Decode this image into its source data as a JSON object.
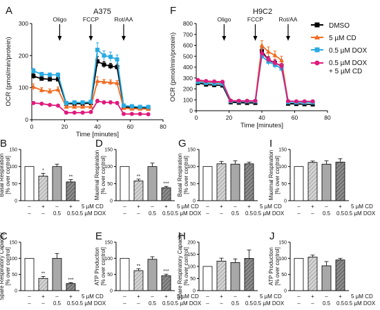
{
  "legend": {
    "items": [
      {
        "label": "DMSO",
        "color": "#000000"
      },
      {
        "label": "5 µM CD",
        "color": "#f26b21"
      },
      {
        "label": "0.5 µM DOX",
        "color": "#29abe2"
      },
      {
        "label": "0.5 µM DOX",
        "label2": "+ 5 µM CD",
        "color": "#e0197d"
      }
    ]
  },
  "bar_panels_common": {
    "cd_label": "5 µM CD",
    "dox_label": "0.5 µM DOX",
    "cd_signs": [
      "–",
      "+",
      "–",
      "+"
    ],
    "dox_signs": [
      "–",
      "–",
      "0.5",
      "0.5"
    ],
    "ylabel2": "[% over control]"
  },
  "chart_data": [
    {
      "id": "A",
      "type": "line",
      "panel_letter": "A",
      "title": "A375",
      "xlabel": "Time [minutes]",
      "ylabel": "OCR (pmol/min/protein)",
      "xlim": [
        0,
        80
      ],
      "ylim": [
        0,
        300
      ],
      "xticks": [
        0,
        20,
        40,
        60,
        80
      ],
      "yticks": [
        0,
        100,
        200,
        300
      ],
      "annotations": [
        {
          "label": "Oligo",
          "x": 17
        },
        {
          "label": "FCCP",
          "x": 36
        },
        {
          "label": "Rot/AA",
          "x": 56
        }
      ],
      "x": [
        1,
        6,
        11,
        16,
        21,
        26,
        31,
        36,
        40,
        44,
        48,
        52,
        56,
        61,
        66,
        71
      ],
      "series": [
        {
          "name": "DMSO",
          "color": "#000000",
          "marker": "square",
          "values": [
            136,
            128,
            126,
            126,
            50,
            50,
            50,
            52,
            182,
            172,
            167,
            164,
            40,
            38,
            37,
            37
          ],
          "errors": [
            8,
            6,
            6,
            6,
            3,
            3,
            3,
            3,
            15,
            10,
            9,
            9,
            3,
            3,
            3,
            3
          ]
        },
        {
          "name": "5 µM CD",
          "color": "#f26b21",
          "marker": "triangle",
          "values": [
            102,
            92,
            88,
            94,
            40,
            40,
            40,
            40,
            120,
            118,
            116,
            114,
            36,
            34,
            34,
            33
          ],
          "errors": [
            10,
            8,
            8,
            8,
            3,
            3,
            3,
            3,
            14,
            8,
            8,
            8,
            3,
            3,
            3,
            3
          ]
        },
        {
          "name": "0.5 µM DOX",
          "color": "#29abe2",
          "marker": "square",
          "values": [
            152,
            142,
            140,
            140,
            52,
            54,
            54,
            56,
            218,
            200,
            196,
            188,
            44,
            42,
            40,
            40
          ],
          "errors": [
            8,
            6,
            6,
            6,
            3,
            3,
            3,
            3,
            22,
            15,
            15,
            14,
            3,
            3,
            3,
            3
          ]
        },
        {
          "name": "0.5 µM DOX + 5 µM CD",
          "color": "#e0197d",
          "marker": "circle",
          "values": [
            52,
            50,
            46,
            44,
            22,
            22,
            22,
            24,
            58,
            54,
            54,
            52,
            18,
            18,
            18,
            17
          ],
          "errors": [
            4,
            3,
            3,
            3,
            2,
            2,
            2,
            2,
            6,
            5,
            5,
            5,
            2,
            2,
            2,
            2
          ]
        }
      ]
    },
    {
      "id": "F",
      "type": "line",
      "panel_letter": "F",
      "title": "H9C2",
      "xlabel": "Time [minutes]",
      "ylabel": "OCR (pmol/min/protein)",
      "xlim": [
        0,
        80
      ],
      "ylim": [
        0,
        800
      ],
      "xticks": [
        0,
        20,
        40,
        60,
        80
      ],
      "yticks": [
        0,
        100,
        200,
        300,
        400,
        500,
        600,
        700,
        800
      ],
      "annotations": [
        {
          "label": "Oligo",
          "x": 17
        },
        {
          "label": "FCCP",
          "x": 36
        },
        {
          "label": "Rot/AA",
          "x": 56
        }
      ],
      "x": [
        1,
        6,
        11,
        16,
        21,
        26,
        31,
        36,
        40,
        44,
        48,
        52,
        56,
        61,
        66,
        71
      ],
      "series": [
        {
          "name": "DMSO",
          "color": "#000000",
          "marker": "square",
          "values": [
            255,
            240,
            235,
            232,
            78,
            74,
            72,
            72,
            548,
            465,
            438,
            410,
            65,
            62,
            60,
            58
          ],
          "errors": [
            10,
            10,
            10,
            10,
            8,
            8,
            8,
            8,
            28,
            28,
            25,
            25,
            8,
            8,
            8,
            8
          ]
        },
        {
          "name": "5 µM CD",
          "color": "#f26b21",
          "marker": "triangle",
          "values": [
            270,
            262,
            258,
            258,
            92,
            90,
            90,
            90,
            598,
            540,
            508,
            462,
            82,
            80,
            80,
            80
          ],
          "errors": [
            12,
            12,
            12,
            12,
            8,
            8,
            8,
            8,
            45,
            45,
            40,
            38,
            8,
            8,
            8,
            8
          ]
        },
        {
          "name": "0.5 µM DOX",
          "color": "#29abe2",
          "marker": "square",
          "values": [
            265,
            255,
            250,
            248,
            88,
            86,
            86,
            86,
            500,
            450,
            420,
            388,
            78,
            76,
            76,
            76
          ],
          "errors": [
            12,
            12,
            12,
            12,
            8,
            8,
            8,
            8,
            35,
            30,
            30,
            28,
            8,
            8,
            8,
            8
          ]
        },
        {
          "name": "0.5 µM DOX + 5 µM CD",
          "color": "#e0197d",
          "marker": "circle",
          "values": [
            282,
            272,
            268,
            265,
            92,
            90,
            90,
            90,
            528,
            470,
            440,
            410,
            88,
            86,
            86,
            86
          ],
          "errors": [
            12,
            12,
            12,
            12,
            8,
            8,
            8,
            8,
            30,
            28,
            28,
            25,
            8,
            8,
            8,
            8
          ]
        }
      ]
    },
    {
      "id": "B",
      "type": "bar",
      "panel_letter": "B",
      "ylabel": "Basal Respiration",
      "ylim": [
        0,
        150
      ],
      "yticks": [
        0,
        50,
        100,
        150
      ],
      "values": [
        100,
        72,
        100,
        55
      ],
      "errors": [
        0,
        8,
        7,
        7
      ],
      "significance": [
        "",
        "*",
        "",
        "**"
      ]
    },
    {
      "id": "D",
      "type": "bar",
      "panel_letter": "D",
      "ylabel": "Maximal Respiration",
      "ylim": [
        0,
        150
      ],
      "yticks": [
        0,
        50,
        100,
        150
      ],
      "values": [
        100,
        58,
        100,
        38
      ],
      "errors": [
        0,
        5,
        10,
        4
      ],
      "significance": [
        "",
        "**",
        "",
        "***"
      ]
    },
    {
      "id": "G",
      "type": "bar",
      "panel_letter": "G",
      "ylabel": "Basal Respiration",
      "ylim": [
        0,
        150
      ],
      "yticks": [
        0,
        50,
        100,
        150
      ],
      "values": [
        100,
        108,
        107,
        108
      ],
      "errors": [
        0,
        7,
        10,
        5
      ],
      "significance": [
        "",
        "",
        "",
        ""
      ]
    },
    {
      "id": "I",
      "type": "bar",
      "panel_letter": "I",
      "ylabel": "Maximal Respiration",
      "ylim": [
        0,
        150
      ],
      "yticks": [
        0,
        50,
        100,
        150
      ],
      "values": [
        100,
        112,
        107,
        113
      ],
      "errors": [
        0,
        4,
        10,
        10
      ],
      "significance": [
        "",
        "",
        "",
        ""
      ]
    },
    {
      "id": "C",
      "type": "bar",
      "panel_letter": "C",
      "ylabel": "Spare Respiratory Capacity",
      "ylim": [
        0,
        150
      ],
      "yticks": [
        0,
        50,
        100,
        150
      ],
      "values": [
        100,
        38,
        100,
        22
      ],
      "errors": [
        0,
        6,
        15,
        3
      ],
      "significance": [
        "",
        "**",
        "",
        "***"
      ]
    },
    {
      "id": "E",
      "type": "bar",
      "panel_letter": "E",
      "ylabel": "ATP Production",
      "ylim": [
        0,
        150
      ],
      "yticks": [
        0,
        50,
        100,
        150
      ],
      "values": [
        100,
        62,
        97,
        46
      ],
      "errors": [
        0,
        6,
        8,
        5
      ],
      "significance": [
        "",
        "**",
        "",
        "***"
      ]
    },
    {
      "id": "H",
      "type": "bar",
      "panel_letter": "H",
      "ylabel": "Spare Respiratory Capacity",
      "ylim": [
        0,
        200
      ],
      "yticks": [
        0,
        50,
        100,
        150,
        200
      ],
      "values": [
        100,
        122,
        116,
        133
      ],
      "errors": [
        0,
        12,
        15,
        35
      ],
      "significance": [
        "",
        "",
        "",
        ""
      ]
    },
    {
      "id": "J",
      "type": "bar",
      "panel_letter": "J",
      "ylabel": "ATP Production",
      "ylim": [
        0,
        150
      ],
      "yticks": [
        0,
        50,
        100,
        150
      ],
      "values": [
        100,
        104,
        77,
        95
      ],
      "errors": [
        0,
        6,
        13,
        5
      ],
      "significance": [
        "",
        "",
        "",
        ""
      ]
    }
  ]
}
